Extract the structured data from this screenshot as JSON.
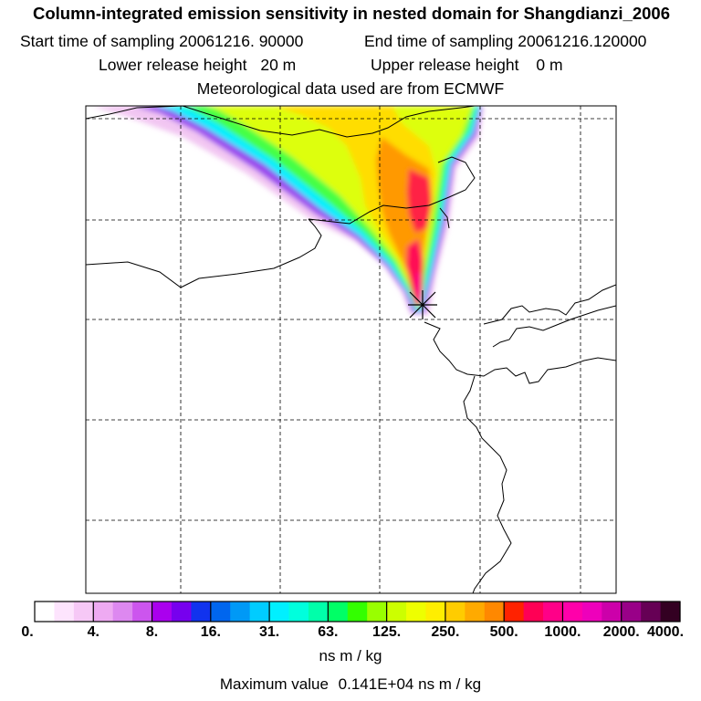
{
  "header": {
    "title": "Column-integrated emission sensitivity in nested domain for Shangdianzi_2006",
    "start_label": "Start time of sampling",
    "start_value": "20061216. 90000",
    "end_label": "End time of sampling",
    "end_value": "20061216.120000",
    "lower_label": "Lower release height",
    "lower_value": "20 m",
    "upper_label": "Upper release height",
    "upper_value": "0 m",
    "met": "Meteorological data used are from ECMWF"
  },
  "colors": {
    "scale": [
      "#ffffff",
      "#fde4fd",
      "#f6c8f6",
      "#eeaaf2",
      "#dd88f0",
      "#cc55ee",
      "#aa00ee",
      "#7700ee",
      "#4400ee",
      "#1133ee",
      "#0066ee",
      "#0099f6",
      "#00ccff",
      "#00f0ff",
      "#00ffdd",
      "#00ffaa",
      "#00ff66",
      "#33ff00",
      "#99ff00",
      "#ccff00",
      "#eeff00",
      "#ffee00",
      "#ffcc00",
      "#ffaa00",
      "#ff8800",
      "#ff5500",
      "#ff2200",
      "#ff0055",
      "#ff0088",
      "#ff00aa",
      "#ee00bb",
      "#cc00aa",
      "#990088",
      "#660055",
      "#330022"
    ]
  },
  "chart_data": {
    "type": "heatmap",
    "title": "Column-integrated emission sensitivity in nested domain for Shangdianzi_2006",
    "colorbar": {
      "tick_labels": [
        "0.",
        "4.",
        "8.",
        "16.",
        "31.",
        "63.",
        "125.",
        "250.",
        "500.",
        "1000.",
        "2000.",
        "4000."
      ],
      "tick_values": [
        0,
        4,
        8,
        16,
        31,
        63,
        125,
        250,
        500,
        1000,
        2000,
        4000
      ],
      "units": "ns m / kg",
      "segments_per_tick": 3
    },
    "max_value_label": "Maximum value",
    "max_value": "0.141E+04",
    "max_value_units": "ns m / kg",
    "receptor": "Shangdianzi",
    "grid": true
  }
}
